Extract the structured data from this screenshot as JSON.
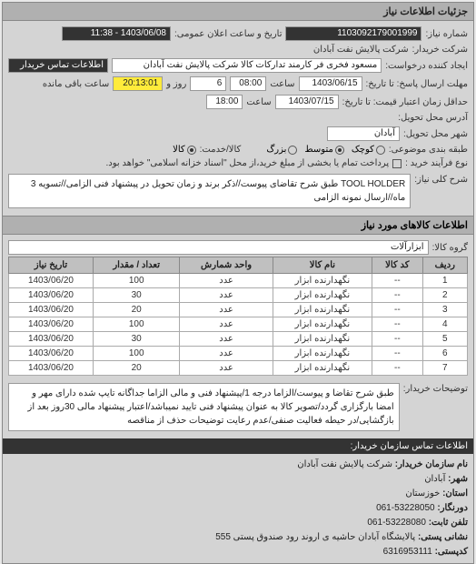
{
  "panel_title": "جزئیات اطلاعات نیاز",
  "header": {
    "req_no_label": "شماره نیاز:",
    "req_no": "1103092179001999",
    "announce_label": "تاریخ و ساعت اعلان عمومی:",
    "announce_value": "1403/06/08 - 11:38",
    "buyer_org_label": "شرکت خریدار:",
    "buyer_org": "شرکت پالایش نفت آبادان",
    "requester_label": "ایجاد کننده درخواست:",
    "requester": "مسعود فخری فر کارمند تدارکات کالا شرکت پالایش نفت آبادان",
    "contact_label": "اطلاعات تماس خریدار"
  },
  "deadlines": {
    "send_until_label": "مهلت ارسال پاسخ: تا تاریخ:",
    "send_date": "1403/06/15",
    "time_label": "ساعت",
    "send_time": "08:00",
    "days_label": "روز و",
    "days": "6",
    "remain_label": "ساعت باقی مانده",
    "remain_time": "20:13:01",
    "price_valid_label": "حداقل زمان اعتبار قیمت: تا تاریخ:",
    "price_date": "1403/07/15",
    "price_time": "18:00"
  },
  "delivery": {
    "deliver_addr_label": "آدرس محل تحویل:",
    "deliver_city_label": "شهر محل تحویل:",
    "deliver_city": "آبادان"
  },
  "budget": {
    "label": "طبقه بندی موضوعی:",
    "opts": [
      "کوچک",
      "متوسط",
      "بزرگ"
    ],
    "selected": 1,
    "part_label": "کالا/خدمت:",
    "part_opts": [
      "کالا"
    ]
  },
  "process": {
    "label": "نوع فرآیند خرید :",
    "note": "پرداخت تمام یا بخشی از مبلغ خرید،از محل \"اسناد خزانه اسلامی\" خواهد بود."
  },
  "main_desc": {
    "label": "شرح کلی نیاز:",
    "text": "TOOL HOLDER طبق شرح تقاضای پیوست//ذکر برند و زمان تحویل در پیشنهاد فنی الزامی//تسویه 3 ماه//ارسال نمونه الزامی"
  },
  "items_section": {
    "title": "اطلاعات کالاهای مورد نیاز",
    "group_label": "گروه کالا:",
    "group_value": "ابزارآلات",
    "columns": [
      "ردیف",
      "کد کالا",
      "نام کالا",
      "واحد شمارش",
      "تعداد / مقدار",
      "تاریخ نیاز"
    ],
    "rows": [
      [
        "1",
        "--",
        "نگهدارنده ابزار",
        "عدد",
        "100",
        "1403/06/20"
      ],
      [
        "2",
        "--",
        "نگهدارنده ابزار",
        "عدد",
        "30",
        "1403/06/20"
      ],
      [
        "3",
        "--",
        "نگهدارنده ابزار",
        "عدد",
        "20",
        "1403/06/20"
      ],
      [
        "4",
        "--",
        "نگهدارنده ابزار",
        "عدد",
        "100",
        "1403/06/20"
      ],
      [
        "5",
        "--",
        "نگهدارنده ابزار",
        "عدد",
        "30",
        "1403/06/20"
      ],
      [
        "6",
        "--",
        "نگهدارنده ابزار",
        "عدد",
        "100",
        "1403/06/20"
      ],
      [
        "7",
        "--",
        "نگهدارنده ابزار",
        "عدد",
        "20",
        "1403/06/20"
      ]
    ]
  },
  "buyer_notes": {
    "label": "توضیحات خریدار:",
    "text": "طبق شرح تقاضا و پیوست/الزاما درجه 1/پیشنهاد فنی و مالی الزاما جداگانه تایپ شده دارای مهر و امضا بارگزاری گردد/تصویر کالا به عنوان پیشنهاد فنی تایید نمیباشد/اعتبار پیشنهاد مالی 30روز بعد از بازگشایی/در حیطه فعالیت صنفی/عدم رعایت توضیحات حذف از مناقصه"
  },
  "contact_bar": "اطلاعات تماس سازمان خریدار:",
  "footer": {
    "org_label": "نام سازمان خریدار:",
    "org": "شرکت پالایش نفت آبادان",
    "city_label": "شهر:",
    "city": "آبادان",
    "province_label": "استان:",
    "province": "خوزستان",
    "fax_label": "دورنگار:",
    "fax": "53228050-061",
    "phone_label": "تلفن ثابت:",
    "phone": "53228080-061",
    "postal_label": "نشانی پستی:",
    "postal": "پالایشگاه آبادان حاشیه ی اروند رود صندوق پستی 555",
    "postcode_label": "کدپستی:",
    "postcode": "6316953111"
  }
}
